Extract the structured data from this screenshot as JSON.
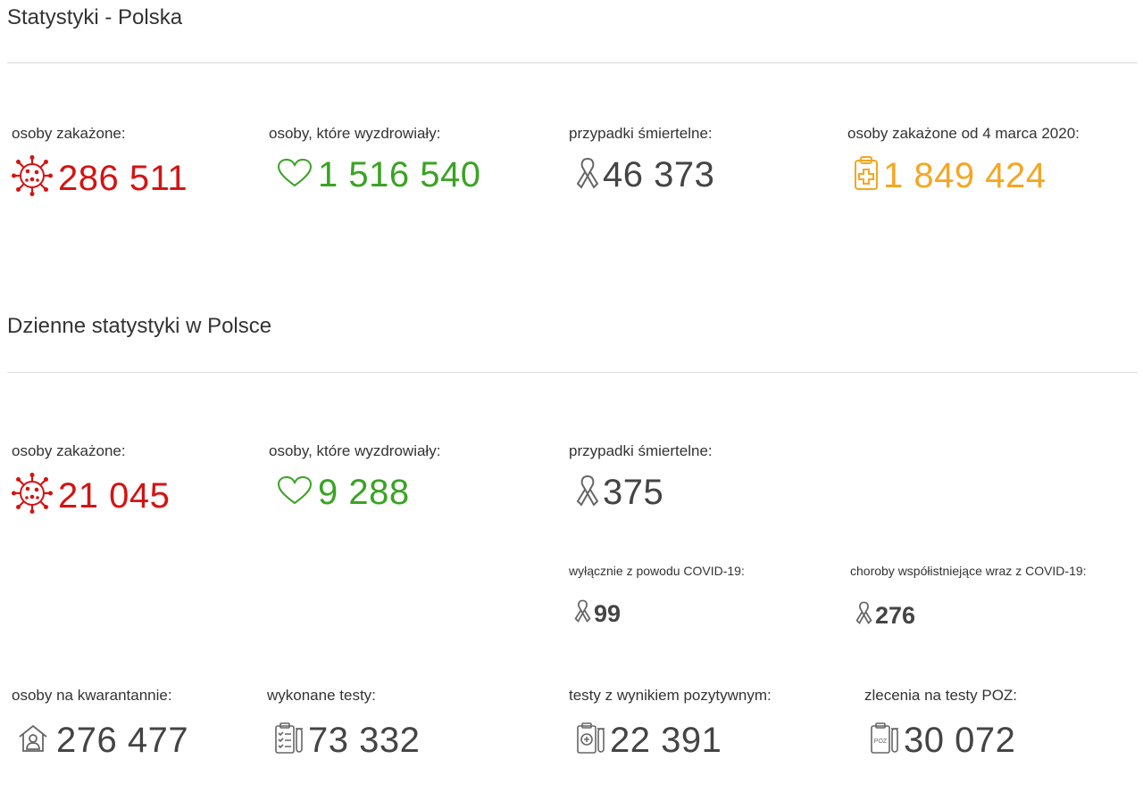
{
  "colors": {
    "red": "#d41313",
    "green": "#3aa324",
    "dark": "#444444",
    "orange": "#f5a623",
    "grey": "#777777"
  },
  "poland": {
    "title": "Statystyki - Polska",
    "infected": {
      "label": "osoby zakażone:",
      "value": "286 511",
      "icon": "virus-icon"
    },
    "recovered": {
      "label": "osoby, które wyzdrowiały:",
      "value": "1 516 540",
      "icon": "heart-icon"
    },
    "deaths": {
      "label": "przypadki śmiertelne:",
      "value": "46 373",
      "icon": "ribbon-icon"
    },
    "total_infected": {
      "label": "osoby zakażone od 4 marca 2020:",
      "value": "1 849 424",
      "icon": "clipboard-medical-icon"
    }
  },
  "daily": {
    "title": "Dzienne statystyki w Polsce",
    "infected": {
      "label": "osoby zakażone:",
      "value": "21 045",
      "icon": "virus-icon"
    },
    "recovered": {
      "label": "osoby, które wyzdrowiały:",
      "value": "9 288",
      "icon": "heart-icon"
    },
    "deaths": {
      "label": "przypadki śmiertelne:",
      "value": "375",
      "icon": "ribbon-icon"
    },
    "deaths_covid_only": {
      "label": "wyłącznie z powodu COVID-19:",
      "value": "99",
      "icon": "ribbon-icon"
    },
    "deaths_comorbid": {
      "label": "choroby współistniejące wraz z COVID-19:",
      "value": "276",
      "icon": "ribbon-icon"
    },
    "quarantine": {
      "label": "osoby na kwarantannie:",
      "value": "276 477",
      "icon": "house-person-icon"
    },
    "tests": {
      "label": "wykonane testy:",
      "value": "73 332",
      "icon": "test-checklist-icon"
    },
    "positive_tests": {
      "label": "testy z wynikiem pozytywnym:",
      "value": "22 391",
      "icon": "test-positive-icon"
    },
    "poz_orders": {
      "label": "zlecenia na testy POZ:",
      "value": "30 072",
      "icon": "test-poz-icon",
      "icon_text": "POZ"
    }
  }
}
